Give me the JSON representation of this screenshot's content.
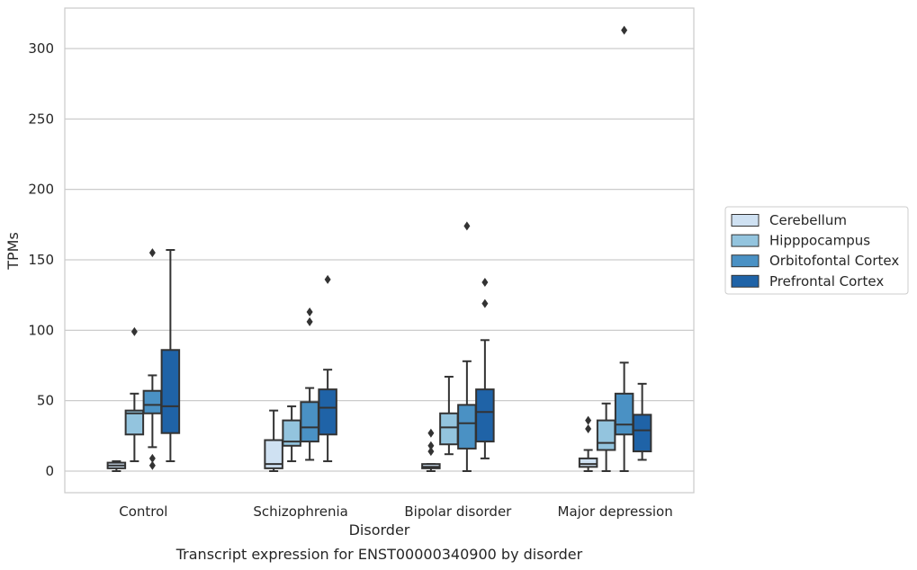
{
  "chart_data": {
    "type": "box",
    "caption": "Transcript expression for ENST00000340900 by disorder",
    "xlabel": "Disorder",
    "ylabel": "TPMs",
    "ylim": [
      -15,
      330
    ],
    "yticks": [
      0,
      50,
      100,
      150,
      200,
      250,
      300
    ],
    "grid": true,
    "legend_position": "right",
    "categories": [
      "Control",
      "Schizophrenia",
      "Bipolar disorder",
      "Major depression"
    ],
    "series": [
      {
        "name": "Cerebellum",
        "color": "#cfe1f2",
        "boxes": [
          {
            "whislo": 0,
            "q1": 2,
            "med": 4,
            "q3": 6,
            "whishi": 7,
            "fliers": []
          },
          {
            "whislo": 0,
            "q1": 2,
            "med": 5,
            "q3": 22,
            "whishi": 43,
            "fliers": []
          },
          {
            "whislo": 0,
            "q1": 2,
            "med": 3,
            "q3": 5,
            "whishi": 5,
            "fliers": [
              14,
              18,
              27
            ]
          },
          {
            "whislo": 0,
            "q1": 3,
            "med": 5,
            "q3": 9,
            "whishi": 15,
            "fliers": [
              30,
              36
            ]
          }
        ]
      },
      {
        "name": "Hipppocampus",
        "color": "#93c4de",
        "boxes": [
          {
            "whislo": 7,
            "q1": 26,
            "med": 41,
            "q3": 43,
            "whishi": 55,
            "fliers": [
              99
            ]
          },
          {
            "whislo": 7,
            "q1": 18,
            "med": 21,
            "q3": 36,
            "whishi": 46,
            "fliers": []
          },
          {
            "whislo": 12,
            "q1": 19,
            "med": 31,
            "q3": 41,
            "whishi": 67,
            "fliers": []
          },
          {
            "whislo": 0,
            "q1": 15,
            "med": 20,
            "q3": 36,
            "whishi": 48,
            "fliers": []
          }
        ]
      },
      {
        "name": "Orbitofontal Cortex",
        "color": "#4a91c4",
        "boxes": [
          {
            "whislo": 17,
            "q1": 41,
            "med": 47,
            "q3": 57,
            "whishi": 68,
            "fliers": [
              155,
              9,
              4
            ]
          },
          {
            "whislo": 8,
            "q1": 21,
            "med": 31,
            "q3": 49,
            "whishi": 59,
            "fliers": [
              106,
              113
            ]
          },
          {
            "whislo": 0,
            "q1": 16,
            "med": 34,
            "q3": 47,
            "whishi": 78,
            "fliers": [
              174
            ]
          },
          {
            "whislo": 0,
            "q1": 26,
            "med": 33,
            "q3": 55,
            "whishi": 77,
            "fliers": [
              313
            ]
          }
        ]
      },
      {
        "name": "Prefrontal Cortex",
        "color": "#1f63a7",
        "boxes": [
          {
            "whislo": 7,
            "q1": 27,
            "med": 46,
            "q3": 86,
            "whishi": 157,
            "fliers": []
          },
          {
            "whislo": 7,
            "q1": 26,
            "med": 45,
            "q3": 58,
            "whishi": 72,
            "fliers": [
              136
            ]
          },
          {
            "whislo": 9,
            "q1": 21,
            "med": 42,
            "q3": 58,
            "whishi": 93,
            "fliers": [
              119,
              134
            ]
          },
          {
            "whislo": 8,
            "q1": 14,
            "med": 29,
            "q3": 40,
            "whishi": 62,
            "fliers": []
          }
        ]
      }
    ]
  }
}
